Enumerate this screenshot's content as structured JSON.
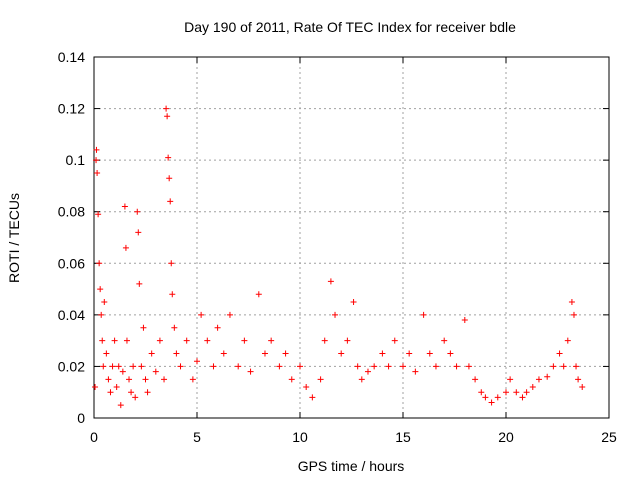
{
  "chart_data": {
    "type": "scatter",
    "title": "Day 190 of 2011, Rate Of TEC Index for receiver bdle",
    "xlabel": "GPS time / hours",
    "ylabel": "ROTI / TECUs",
    "xlim": [
      0,
      25
    ],
    "ylim": [
      0,
      0.14
    ],
    "x_ticks": [
      "0",
      "5",
      "10",
      "15",
      "20",
      "25"
    ],
    "y_ticks": [
      "0",
      "0.02",
      "0.04",
      "0.06",
      "0.08",
      "0.1",
      "0.12",
      "0.14"
    ],
    "x_tick_values": [
      0,
      5,
      10,
      15,
      20,
      25
    ],
    "y_tick_values": [
      0,
      0.02,
      0.04,
      0.06,
      0.08,
      0.1,
      0.12,
      0.14
    ],
    "grid": true,
    "marker": "plus",
    "series": [
      {
        "color": "#ff0000",
        "points": [
          [
            0.05,
            0.012
          ],
          [
            0.1,
            0.1
          ],
          [
            0.12,
            0.104
          ],
          [
            0.15,
            0.095
          ],
          [
            0.2,
            0.079
          ],
          [
            0.25,
            0.06
          ],
          [
            0.3,
            0.05
          ],
          [
            0.35,
            0.04
          ],
          [
            0.4,
            0.03
          ],
          [
            0.45,
            0.02
          ],
          [
            0.5,
            0.045
          ],
          [
            0.6,
            0.025
          ],
          [
            0.7,
            0.015
          ],
          [
            0.8,
            0.01
          ],
          [
            0.9,
            0.02
          ],
          [
            1.0,
            0.03
          ],
          [
            1.1,
            0.012
          ],
          [
            1.2,
            0.02
          ],
          [
            1.3,
            0.005
          ],
          [
            1.4,
            0.018
          ],
          [
            1.5,
            0.082
          ],
          [
            1.55,
            0.066
          ],
          [
            1.6,
            0.03
          ],
          [
            1.7,
            0.015
          ],
          [
            1.8,
            0.01
          ],
          [
            1.9,
            0.02
          ],
          [
            2.0,
            0.008
          ],
          [
            2.1,
            0.08
          ],
          [
            2.15,
            0.072
          ],
          [
            2.2,
            0.052
          ],
          [
            2.3,
            0.02
          ],
          [
            2.4,
            0.035
          ],
          [
            2.5,
            0.015
          ],
          [
            2.6,
            0.01
          ],
          [
            2.8,
            0.025
          ],
          [
            3.0,
            0.018
          ],
          [
            3.2,
            0.03
          ],
          [
            3.4,
            0.015
          ],
          [
            3.5,
            0.12
          ],
          [
            3.55,
            0.117
          ],
          [
            3.6,
            0.101
          ],
          [
            3.65,
            0.093
          ],
          [
            3.7,
            0.084
          ],
          [
            3.75,
            0.06
          ],
          [
            3.8,
            0.048
          ],
          [
            3.9,
            0.035
          ],
          [
            4.0,
            0.025
          ],
          [
            4.2,
            0.02
          ],
          [
            4.5,
            0.03
          ],
          [
            4.8,
            0.015
          ],
          [
            5.0,
            0.022
          ],
          [
            5.2,
            0.04
          ],
          [
            5.5,
            0.03
          ],
          [
            5.8,
            0.02
          ],
          [
            6.0,
            0.035
          ],
          [
            6.3,
            0.025
          ],
          [
            6.6,
            0.04
          ],
          [
            7.0,
            0.02
          ],
          [
            7.3,
            0.03
          ],
          [
            7.6,
            0.018
          ],
          [
            8.0,
            0.048
          ],
          [
            8.3,
            0.025
          ],
          [
            8.6,
            0.03
          ],
          [
            9.0,
            0.02
          ],
          [
            9.3,
            0.025
          ],
          [
            9.6,
            0.015
          ],
          [
            10.0,
            0.02
          ],
          [
            10.3,
            0.012
          ],
          [
            10.6,
            0.008
          ],
          [
            11.0,
            0.015
          ],
          [
            11.2,
            0.03
          ],
          [
            11.5,
            0.053
          ],
          [
            11.7,
            0.04
          ],
          [
            12.0,
            0.025
          ],
          [
            12.3,
            0.03
          ],
          [
            12.6,
            0.045
          ],
          [
            12.8,
            0.02
          ],
          [
            13.0,
            0.015
          ],
          [
            13.3,
            0.018
          ],
          [
            13.6,
            0.02
          ],
          [
            14.0,
            0.025
          ],
          [
            14.3,
            0.02
          ],
          [
            14.6,
            0.03
          ],
          [
            15.0,
            0.02
          ],
          [
            15.3,
            0.025
          ],
          [
            15.6,
            0.018
          ],
          [
            16.0,
            0.04
          ],
          [
            16.3,
            0.025
          ],
          [
            16.6,
            0.02
          ],
          [
            17.0,
            0.03
          ],
          [
            17.3,
            0.025
          ],
          [
            17.6,
            0.02
          ],
          [
            18.0,
            0.038
          ],
          [
            18.2,
            0.02
          ],
          [
            18.5,
            0.015
          ],
          [
            18.8,
            0.01
          ],
          [
            19.0,
            0.008
          ],
          [
            19.3,
            0.006
          ],
          [
            19.6,
            0.008
          ],
          [
            20.0,
            0.01
          ],
          [
            20.2,
            0.015
          ],
          [
            20.5,
            0.01
          ],
          [
            20.8,
            0.008
          ],
          [
            21.0,
            0.01
          ],
          [
            21.3,
            0.012
          ],
          [
            21.6,
            0.015
          ],
          [
            22.0,
            0.016
          ],
          [
            22.3,
            0.02
          ],
          [
            22.6,
            0.025
          ],
          [
            22.8,
            0.02
          ],
          [
            23.0,
            0.03
          ],
          [
            23.2,
            0.045
          ],
          [
            23.3,
            0.04
          ],
          [
            23.4,
            0.02
          ],
          [
            23.5,
            0.015
          ],
          [
            23.7,
            0.012
          ]
        ]
      }
    ]
  }
}
